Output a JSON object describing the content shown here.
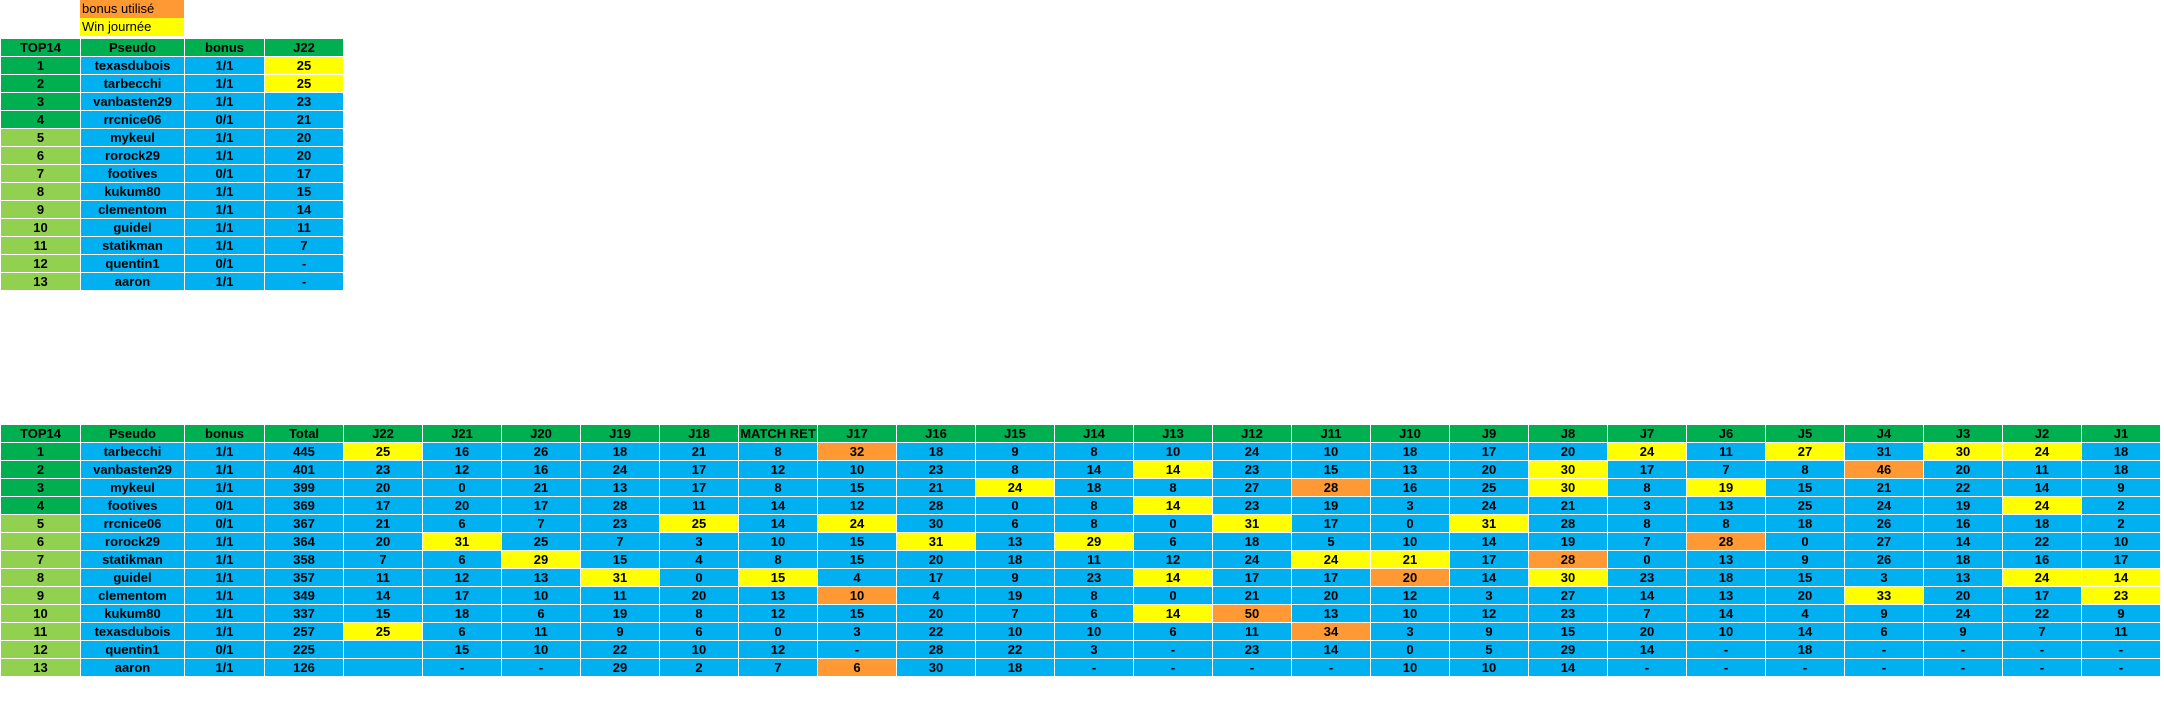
{
  "legend": [
    {
      "label": "bonus utilisé",
      "color": "#ff9933"
    },
    {
      "label": "Win journée",
      "color": "#ffff00"
    }
  ],
  "colors": {
    "header": "#00b050",
    "rank_top4": "#00b050",
    "rank_other": "#92d050",
    "cell": "#00b0f0",
    "win": "#ffff00",
    "bonus": "#ff9933"
  },
  "table1": {
    "headers": [
      "TOP14",
      "Pseudo",
      "bonus",
      "J22"
    ],
    "rows": [
      [
        "1",
        "texasdubois",
        "1/1",
        "25"
      ],
      [
        "2",
        "tarbecchi",
        "1/1",
        "25"
      ],
      [
        "3",
        "vanbasten29",
        "1/1",
        "23"
      ],
      [
        "4",
        "rrcnice06",
        "0/1",
        "21"
      ],
      [
        "5",
        "mykeul",
        "1/1",
        "20"
      ],
      [
        "6",
        "rorock29",
        "1/1",
        "20"
      ],
      [
        "7",
        "footives",
        "0/1",
        "17"
      ],
      [
        "8",
        "kukum80",
        "1/1",
        "15"
      ],
      [
        "9",
        "clementom",
        "1/1",
        "14"
      ],
      [
        "10",
        "guidel",
        "1/1",
        "11"
      ],
      [
        "11",
        "statikman",
        "1/1",
        "7"
      ],
      [
        "12",
        "quentin1",
        "0/1",
        "-"
      ],
      [
        "13",
        "aaron",
        "1/1",
        "-"
      ]
    ],
    "styles": [
      [
        "",
        "",
        "",
        "w"
      ],
      [
        "",
        "",
        "",
        "w"
      ],
      [
        "",
        "",
        "",
        ""
      ],
      [
        "",
        "",
        "",
        ""
      ],
      [
        "",
        "",
        "",
        ""
      ],
      [
        "",
        "",
        "",
        ""
      ],
      [
        "",
        "",
        "",
        ""
      ],
      [
        "",
        "",
        "",
        ""
      ],
      [
        "",
        "",
        "",
        ""
      ],
      [
        "",
        "",
        "",
        ""
      ],
      [
        "",
        "",
        "",
        ""
      ],
      [
        "",
        "",
        "",
        ""
      ],
      [
        "",
        "",
        "",
        ""
      ]
    ]
  },
  "table2": {
    "headers": [
      "TOP14",
      "Pseudo",
      "bonus",
      "Total",
      "J22",
      "J21",
      "J20",
      "J19",
      "J18",
      "MATCH RET",
      "J17",
      "J16",
      "J15",
      "J14",
      "J13",
      "J12",
      "J11",
      "J10",
      "J9",
      "J8",
      "J7",
      "J6",
      "J5",
      "J4",
      "J3",
      "J2",
      "J1"
    ],
    "rows": [
      [
        "1",
        "tarbecchi",
        "1/1",
        "445",
        "25",
        "16",
        "26",
        "18",
        "21",
        "8",
        "32",
        "18",
        "9",
        "8",
        "10",
        "24",
        "10",
        "18",
        "17",
        "20",
        "24",
        "11",
        "27",
        "31",
        "30",
        "24",
        "18"
      ],
      [
        "2",
        "vanbasten29",
        "1/1",
        "401",
        "23",
        "12",
        "16",
        "24",
        "17",
        "12",
        "10",
        "23",
        "8",
        "14",
        "14",
        "23",
        "15",
        "13",
        "20",
        "30",
        "17",
        "7",
        "8",
        "46",
        "20",
        "11",
        "18"
      ],
      [
        "3",
        "mykeul",
        "1/1",
        "399",
        "20",
        "0",
        "21",
        "13",
        "17",
        "8",
        "15",
        "21",
        "24",
        "18",
        "8",
        "27",
        "28",
        "16",
        "25",
        "30",
        "8",
        "19",
        "15",
        "21",
        "22",
        "14",
        "9"
      ],
      [
        "4",
        "footives",
        "0/1",
        "369",
        "17",
        "20",
        "17",
        "28",
        "11",
        "14",
        "12",
        "28",
        "0",
        "8",
        "14",
        "23",
        "19",
        "3",
        "24",
        "21",
        "3",
        "13",
        "25",
        "24",
        "19",
        "24",
        "2"
      ],
      [
        "5",
        "rrcnice06",
        "0/1",
        "367",
        "21",
        "6",
        "7",
        "23",
        "25",
        "14",
        "24",
        "30",
        "6",
        "8",
        "0",
        "31",
        "17",
        "0",
        "31",
        "28",
        "8",
        "8",
        "18",
        "26",
        "16",
        "18",
        "2"
      ],
      [
        "6",
        "rorock29",
        "1/1",
        "364",
        "20",
        "31",
        "25",
        "7",
        "3",
        "10",
        "15",
        "31",
        "13",
        "29",
        "6",
        "18",
        "5",
        "10",
        "14",
        "19",
        "7",
        "28",
        "0",
        "27",
        "14",
        "22",
        "10"
      ],
      [
        "7",
        "statikman",
        "1/1",
        "358",
        "7",
        "6",
        "29",
        "15",
        "4",
        "8",
        "15",
        "20",
        "18",
        "11",
        "12",
        "24",
        "24",
        "21",
        "17",
        "28",
        "0",
        "13",
        "9",
        "26",
        "18",
        "16",
        "17"
      ],
      [
        "8",
        "guidel",
        "1/1",
        "357",
        "11",
        "12",
        "13",
        "31",
        "0",
        "15",
        "4",
        "17",
        "9",
        "23",
        "14",
        "17",
        "17",
        "20",
        "14",
        "30",
        "23",
        "18",
        "15",
        "3",
        "13",
        "24",
        "14"
      ],
      [
        "9",
        "clementom",
        "1/1",
        "349",
        "14",
        "17",
        "10",
        "11",
        "20",
        "13",
        "10",
        "4",
        "19",
        "8",
        "0",
        "21",
        "20",
        "12",
        "3",
        "27",
        "14",
        "13",
        "20",
        "33",
        "20",
        "17",
        "23"
      ],
      [
        "10",
        "kukum80",
        "1/1",
        "337",
        "15",
        "18",
        "6",
        "19",
        "8",
        "12",
        "15",
        "20",
        "7",
        "6",
        "14",
        "50",
        "13",
        "10",
        "12",
        "23",
        "7",
        "14",
        "4",
        "9",
        "24",
        "22",
        "9"
      ],
      [
        "11",
        "texasdubois",
        "1/1",
        "257",
        "25",
        "6",
        "11",
        "9",
        "6",
        "0",
        "3",
        "22",
        "10",
        "10",
        "6",
        "11",
        "34",
        "3",
        "9",
        "15",
        "20",
        "10",
        "14",
        "6",
        "9",
        "7",
        "11"
      ],
      [
        "12",
        "quentin1",
        "0/1",
        "225",
        "",
        "15",
        "10",
        "22",
        "10",
        "12",
        "-",
        "28",
        "22",
        "3",
        "-",
        "23",
        "14",
        "0",
        "5",
        "29",
        "14",
        "-",
        "18",
        "-",
        "-",
        "-",
        "-"
      ],
      [
        "13",
        "aaron",
        "1/1",
        "126",
        "",
        "-",
        "-",
        "29",
        "2",
        "7",
        "6",
        "30",
        "18",
        "-",
        "-",
        "-",
        "-",
        "10",
        "10",
        "14",
        "-",
        "-",
        "-",
        "-",
        "-",
        "-",
        "-"
      ]
    ],
    "styles": [
      [
        "",
        "",
        "",
        "",
        "w",
        "",
        "",
        "",
        "",
        "",
        "b",
        "",
        "",
        "",
        "",
        "",
        "",
        "",
        "",
        "",
        "w",
        "",
        "w",
        "",
        "w",
        "w",
        ""
      ],
      [
        "",
        "",
        "",
        "",
        "",
        "",
        "",
        "",
        "",
        "",
        "",
        "",
        "",
        "",
        "w",
        "",
        "",
        "",
        "",
        "w",
        "",
        "",
        "",
        "b",
        "",
        "",
        ""
      ],
      [
        "",
        "",
        "",
        "",
        "",
        "",
        "",
        "",
        "",
        "",
        "",
        "",
        "w",
        "",
        "",
        "",
        "b",
        "",
        "",
        "w",
        "",
        "w",
        "",
        "",
        "",
        "",
        ""
      ],
      [
        "",
        "",
        "",
        "",
        "",
        "",
        "",
        "",
        "",
        "",
        "",
        "",
        "",
        "",
        "w",
        "",
        "",
        "",
        "",
        "",
        "",
        "",
        "",
        "",
        "",
        "w",
        ""
      ],
      [
        "",
        "",
        "",
        "",
        "",
        "",
        "",
        "",
        "w",
        "",
        "w",
        "",
        "",
        "",
        "",
        "w",
        "",
        "",
        "w",
        "",
        "",
        "",
        "",
        "",
        "",
        "",
        ""
      ],
      [
        "",
        "",
        "",
        "",
        "",
        "w",
        "",
        "",
        "",
        "",
        "",
        "w",
        "",
        "w",
        "",
        "",
        "",
        "",
        "",
        "",
        "",
        "b",
        "",
        "",
        "",
        "",
        ""
      ],
      [
        "",
        "",
        "",
        "",
        "",
        "",
        "w",
        "",
        "",
        "",
        "",
        "",
        "",
        "",
        "",
        "",
        "w",
        "w",
        "",
        "b",
        "",
        "",
        "",
        "",
        "",
        "",
        ""
      ],
      [
        "",
        "",
        "",
        "",
        "",
        "",
        "",
        "w",
        "",
        "w",
        "",
        "",
        "",
        "",
        "w",
        "",
        "",
        "b",
        "",
        "w",
        "",
        "",
        "",
        "",
        "",
        "w",
        "w"
      ],
      [
        "",
        "",
        "",
        "",
        "",
        "",
        "",
        "",
        "",
        "",
        "b",
        "",
        "",
        "",
        "",
        "",
        "",
        "",
        "",
        "",
        "",
        "",
        "",
        "w",
        "",
        "",
        "w"
      ],
      [
        "",
        "",
        "",
        "",
        "",
        "",
        "",
        "",
        "",
        "",
        "",
        "",
        "",
        "",
        "w",
        "b",
        "",
        "",
        "",
        "",
        "",
        "",
        "",
        "",
        "",
        "",
        ""
      ],
      [
        "",
        "",
        "",
        "",
        "w",
        "",
        "",
        "",
        "",
        "",
        "",
        "",
        "",
        "",
        "",
        "",
        "b",
        "",
        "",
        "",
        "",
        "",
        "",
        "",
        "",
        "",
        ""
      ],
      [
        "",
        "",
        "",
        "",
        "",
        "",
        "",
        "",
        "",
        "",
        "",
        "",
        "",
        "",
        "",
        "",
        "",
        "",
        "",
        "",
        "",
        "",
        "",
        "",
        "",
        "",
        ""
      ],
      [
        "",
        "",
        "",
        "",
        "",
        "",
        "",
        "",
        "",
        "",
        "b",
        "",
        "",
        "",
        "",
        "",
        "",
        "",
        "",
        "",
        "",
        "",
        "",
        "",
        "",
        "",
        ""
      ]
    ]
  }
}
